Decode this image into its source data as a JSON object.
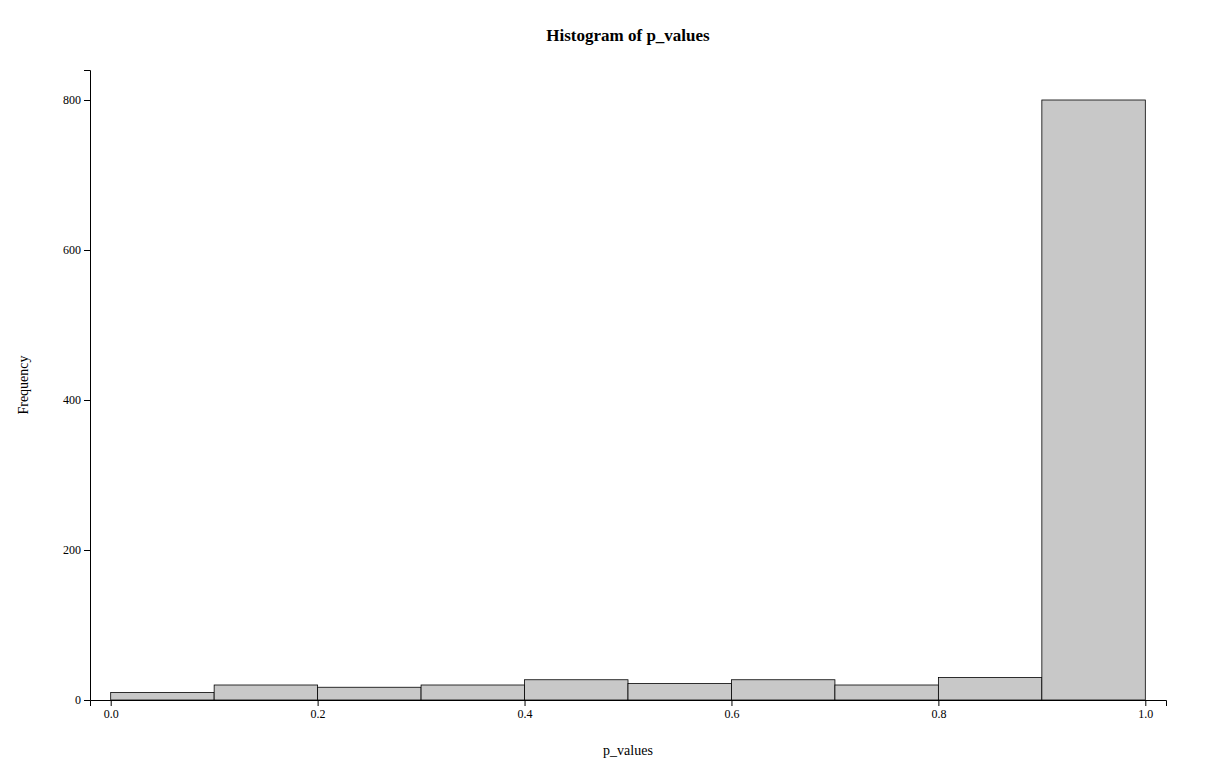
{
  "chart_data": {
    "type": "histogram",
    "title": "Histogram of p_values",
    "x_label": "p_values",
    "y_label": "Frequency",
    "bins": [
      0.0,
      0.1,
      0.2,
      0.3,
      0.4,
      0.5,
      0.6,
      0.7,
      0.8,
      0.9,
      1.0
    ],
    "values": [
      10,
      20,
      17,
      20,
      27,
      22,
      27,
      20,
      30,
      800
    ],
    "color": "#c8c8c8",
    "xlim": [
      -0.02,
      1.02
    ],
    "ylim": [
      0,
      840
    ],
    "xticks": [
      {
        "value": 0.0,
        "label": "0.0"
      },
      0.2,
      0.4,
      0.6,
      0.8,
      {
        "value": 1.0,
        "label": "1.0"
      }
    ],
    "yticks": [
      0,
      200,
      400,
      600,
      800
    ],
    "grid": false
  }
}
